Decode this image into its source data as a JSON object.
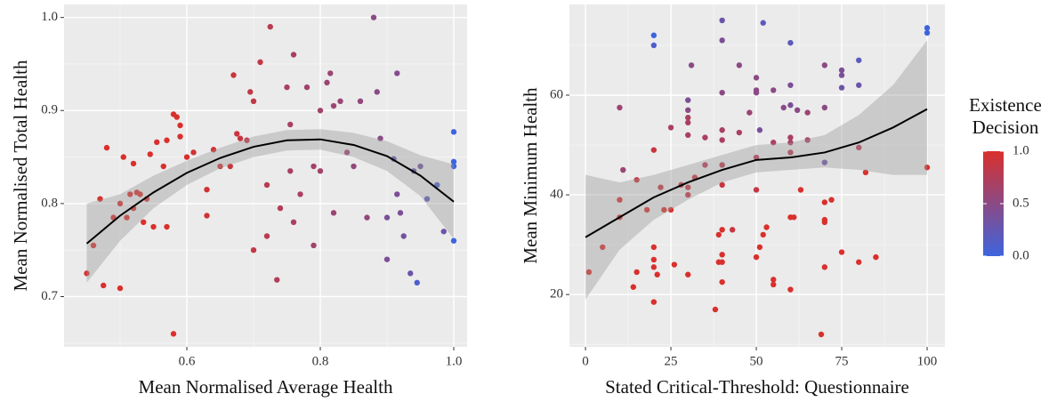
{
  "chart_data": [
    {
      "type": "scatter",
      "xlabel": "Mean Normalised Average Health",
      "ylabel": "Mean Normalised Total Health",
      "xlim": [
        0.416,
        1.02
      ],
      "ylim": [
        0.646,
        1.014
      ],
      "xticks": [
        0.6,
        0.8,
        {
          "value": 1.0,
          "label": "1.0"
        }
      ],
      "yticks": [
        0.7,
        0.8,
        0.9,
        {
          "value": 1.0,
          "label": "1.0"
        }
      ],
      "minor_xticks": [
        0.5,
        0.7,
        0.9
      ],
      "minor_yticks": [
        0.65,
        0.75,
        0.85,
        0.95
      ],
      "grid": true,
      "x": [
        0.45,
        0.46,
        0.47,
        0.475,
        0.48,
        0.49,
        0.5,
        0.5,
        0.505,
        0.51,
        0.515,
        0.52,
        0.52,
        0.525,
        0.53,
        0.535,
        0.54,
        0.545,
        0.55,
        0.555,
        0.565,
        0.57,
        0.57,
        0.58,
        0.585,
        0.59,
        0.59,
        0.58,
        0.6,
        0.61,
        0.63,
        0.63,
        0.64,
        0.65,
        0.665,
        0.67,
        0.675,
        0.68,
        0.69,
        0.695,
        0.7,
        0.7,
        0.71,
        0.72,
        0.72,
        0.725,
        0.735,
        0.74,
        0.75,
        0.755,
        0.755,
        0.76,
        0.76,
        0.77,
        0.78,
        0.79,
        0.79,
        0.8,
        0.8,
        0.81,
        0.815,
        0.82,
        0.82,
        0.83,
        0.84,
        0.85,
        0.86,
        0.87,
        0.88,
        0.885,
        0.89,
        0.9,
        0.9,
        0.91,
        0.915,
        0.915,
        0.92,
        0.925,
        0.935,
        0.94,
        0.945,
        0.95,
        0.96,
        0.975,
        0.985,
        1.0,
        1.0,
        1.0,
        1.0
      ],
      "y": [
        0.725,
        0.755,
        0.805,
        0.712,
        0.86,
        0.785,
        0.709,
        0.8,
        0.85,
        0.785,
        0.81,
        0.843,
        0.795,
        0.812,
        0.81,
        0.78,
        0.805,
        0.853,
        0.775,
        0.866,
        0.84,
        0.868,
        0.775,
        0.896,
        0.893,
        0.872,
        0.884,
        0.66,
        0.85,
        0.855,
        0.815,
        0.787,
        0.858,
        0.84,
        0.84,
        0.938,
        0.875,
        0.87,
        0.868,
        0.92,
        0.91,
        0.75,
        0.952,
        0.82,
        0.765,
        0.99,
        0.718,
        0.795,
        0.925,
        0.885,
        0.835,
        0.78,
        0.96,
        0.81,
        0.925,
        0.84,
        0.755,
        0.835,
        0.9,
        0.93,
        0.94,
        0.905,
        0.79,
        0.91,
        0.855,
        0.84,
        0.91,
        0.785,
        1.0,
        0.92,
        0.87,
        0.74,
        0.785,
        0.848,
        0.81,
        0.94,
        0.79,
        0.765,
        0.725,
        0.835,
        0.715,
        0.84,
        0.805,
        0.82,
        0.77,
        0.877,
        0.845,
        0.84,
        0.76
      ],
      "z": [
        1,
        1,
        1,
        1,
        1,
        1,
        1,
        1,
        1,
        1,
        1,
        1,
        1,
        1,
        1,
        1,
        1,
        1,
        1,
        1,
        1,
        1,
        1,
        1,
        1,
        1,
        1,
        1,
        1,
        0.95,
        0.95,
        0.95,
        0.95,
        0.95,
        0.9,
        0.9,
        0.9,
        0.9,
        0.85,
        0.85,
        0.85,
        0.85,
        0.85,
        0.8,
        0.8,
        0.8,
        0.75,
        0.75,
        0.7,
        0.7,
        0.7,
        0.7,
        0.7,
        0.7,
        0.65,
        0.65,
        0.65,
        0.65,
        0.65,
        0.6,
        0.6,
        0.6,
        0.6,
        0.6,
        0.6,
        0.55,
        0.55,
        0.55,
        0.5,
        0.5,
        0.5,
        0.4,
        0.4,
        0.3,
        0.4,
        0.45,
        0.4,
        0.35,
        0.3,
        0.3,
        0.1,
        0.35,
        0.2,
        0.1,
        0.3,
        0,
        0,
        0,
        0
      ],
      "smooth": {
        "x": [
          0.45,
          0.5,
          0.55,
          0.6,
          0.65,
          0.7,
          0.75,
          0.8,
          0.85,
          0.9,
          0.95,
          1.0
        ],
        "y": [
          0.757,
          0.787,
          0.812,
          0.833,
          0.849,
          0.861,
          0.868,
          0.869,
          0.863,
          0.851,
          0.83,
          0.802
        ],
        "lower": [
          0.715,
          0.76,
          0.795,
          0.82,
          0.838,
          0.85,
          0.857,
          0.858,
          0.85,
          0.835,
          0.808,
          0.762
        ],
        "upper": [
          0.8,
          0.81,
          0.83,
          0.846,
          0.86,
          0.872,
          0.879,
          0.88,
          0.876,
          0.867,
          0.852,
          0.842
        ]
      }
    },
    {
      "type": "scatter",
      "xlabel": "Stated Critical-Threshold: Questionnaire",
      "ylabel": "Mean Minimum Health",
      "xlim": [
        -4.7,
        105.2
      ],
      "ylim": [
        9.5,
        78.2
      ],
      "xticks": [
        0,
        25,
        50,
        75,
        100
      ],
      "yticks": [
        20,
        40,
        60
      ],
      "minor_xticks": [
        12.5,
        37.5,
        62.5,
        87.5
      ],
      "minor_yticks": [
        10,
        30,
        50,
        70
      ],
      "grid": true,
      "x": [
        1,
        5,
        10,
        10,
        10,
        11,
        14,
        15,
        15,
        18,
        20,
        20,
        20,
        20,
        20,
        20,
        20,
        21,
        22,
        23,
        25,
        25,
        26,
        28,
        30,
        30,
        30,
        30,
        30,
        30,
        30,
        30,
        31,
        32,
        35,
        35,
        38,
        39,
        39,
        40,
        40,
        40,
        40,
        40,
        40,
        40,
        40,
        40,
        40,
        40,
        43,
        45,
        45,
        48,
        50,
        50,
        50,
        50,
        50,
        50,
        51,
        51,
        52,
        52,
        53,
        55,
        55,
        55,
        55,
        58,
        60,
        60,
        60,
        60,
        60,
        60,
        60,
        61,
        60,
        62,
        63,
        65,
        65,
        69,
        70,
        70,
        70,
        70,
        70,
        70,
        70,
        72,
        75,
        75,
        75,
        75,
        80,
        80,
        80,
        80,
        82,
        85,
        100,
        100,
        100
      ],
      "y": [
        24.5,
        29.5,
        39,
        35.5,
        57.5,
        45,
        21.5,
        24.5,
        43,
        37,
        72,
        70,
        27,
        25.5,
        29.5,
        18.5,
        49,
        24,
        41.5,
        37,
        37,
        53.5,
        26,
        42,
        59,
        57,
        55.5,
        54.5,
        52,
        40,
        41.5,
        24,
        66,
        43.5,
        46,
        51.5,
        17,
        32,
        26.5,
        75,
        71,
        60.5,
        53,
        51,
        46,
        42,
        33,
        28,
        26.5,
        22.5,
        33,
        66,
        52.5,
        56.5,
        63.5,
        61,
        60.5,
        47.5,
        41,
        27.5,
        29.5,
        53,
        74.5,
        32,
        33.5,
        61,
        50.5,
        23,
        22,
        57.5,
        70.5,
        62,
        58,
        51.5,
        50.5,
        48.5,
        35.5,
        35.5,
        21,
        57,
        41,
        56.5,
        51,
        12,
        66,
        57.5,
        46.5,
        38.5,
        35,
        34.5,
        25.5,
        39,
        65,
        64,
        61.5,
        28.5,
        67,
        62,
        49.5,
        26.5,
        44.5,
        27.5,
        73.5,
        72.5,
        45.5
      ],
      "z": [
        1,
        1,
        1,
        1,
        0.6,
        0.6,
        1,
        1,
        0.9,
        1,
        0,
        0.1,
        1,
        1,
        1,
        1,
        0.9,
        1,
        0.9,
        1,
        1,
        0.7,
        1,
        0.9,
        0.4,
        0.5,
        0.7,
        0.7,
        0.7,
        0.9,
        0.9,
        1,
        0.5,
        0.9,
        0.8,
        0.7,
        1,
        1,
        1,
        0.3,
        0.4,
        0.5,
        0.7,
        0.7,
        0.8,
        0.9,
        1,
        1,
        1,
        1,
        0.9,
        0.5,
        0.7,
        0.6,
        0.5,
        0.5,
        0.5,
        0.8,
        0.9,
        1,
        1,
        0.4,
        0.2,
        1,
        1,
        0.5,
        0.7,
        1,
        1,
        0.5,
        0.2,
        0.4,
        0.4,
        0.7,
        0.7,
        0.8,
        1,
        1,
        1,
        0.5,
        1,
        0.6,
        0.7,
        1,
        0.5,
        0.5,
        0.3,
        1,
        1,
        1,
        1,
        1,
        0.4,
        0.4,
        0.3,
        1,
        0.2,
        0.3,
        0.8,
        1,
        1,
        1,
        0,
        0,
        1
      ],
      "smooth": {
        "x": [
          0,
          10,
          20,
          30,
          40,
          50,
          60,
          70,
          80,
          90,
          100
        ],
        "y": [
          31.5,
          35.5,
          39.5,
          42.5,
          45,
          47,
          47.5,
          48.5,
          50.5,
          53.5,
          57.2
        ],
        "lower": [
          19,
          29,
          35,
          39,
          42.5,
          44.5,
          45,
          45.5,
          45,
          44,
          44
        ],
        "upper": [
          44,
          42.5,
          44,
          46,
          48,
          50,
          50.5,
          52,
          56,
          62,
          71
        ]
      }
    }
  ],
  "legend": {
    "title": [
      "Existence",
      "Decision"
    ],
    "lim": [
      0,
      1
    ],
    "ticks": [
      {
        "value": 0,
        "label": "0.0"
      },
      0.5,
      {
        "value": 1,
        "label": "1.0"
      }
    ],
    "colors": [
      "#3d64de",
      "#d9302c"
    ]
  }
}
